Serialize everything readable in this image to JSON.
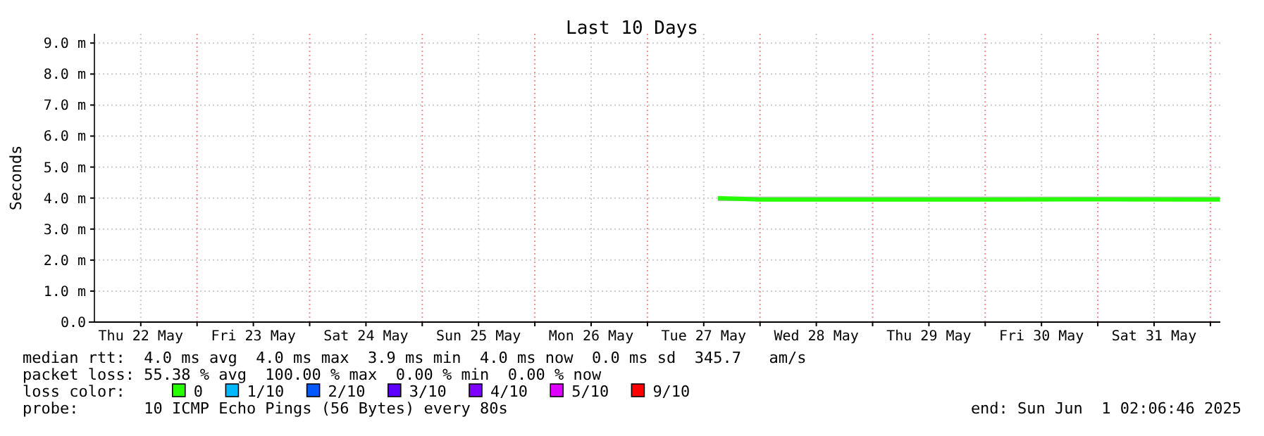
{
  "chart_data": {
    "type": "line",
    "title": "Last 10 Days",
    "ylabel": "Seconds",
    "xlim": [
      "2025-05-22T02:07",
      "2025-06-01T02:07"
    ],
    "xticks": [
      {
        "value": "2025-05-22T12:00",
        "label": "Thu 22 May"
      },
      {
        "value": "2025-05-23T00:00",
        "label": null
      },
      {
        "value": "2025-05-23T12:00",
        "label": "Fri 23 May"
      },
      {
        "value": "2025-05-24T00:00",
        "label": null
      },
      {
        "value": "2025-05-24T12:00",
        "label": "Sat 24 May"
      },
      {
        "value": "2025-05-25T00:00",
        "label": null
      },
      {
        "value": "2025-05-25T12:00",
        "label": "Sun 25 May"
      },
      {
        "value": "2025-05-26T00:00",
        "label": null
      },
      {
        "value": "2025-05-26T12:00",
        "label": "Mon 26 May"
      },
      {
        "value": "2025-05-27T00:00",
        "label": null
      },
      {
        "value": "2025-05-27T12:00",
        "label": "Tue 27 May"
      },
      {
        "value": "2025-05-28T00:00",
        "label": null
      },
      {
        "value": "2025-05-28T12:00",
        "label": "Wed 28 May"
      },
      {
        "value": "2025-05-29T00:00",
        "label": null
      },
      {
        "value": "2025-05-29T12:00",
        "label": "Thu 29 May"
      },
      {
        "value": "2025-05-30T00:00",
        "label": null
      },
      {
        "value": "2025-05-30T12:00",
        "label": "Fri 30 May"
      },
      {
        "value": "2025-05-31T00:00",
        "label": null
      },
      {
        "value": "2025-05-31T12:00",
        "label": "Sat 31 May"
      },
      {
        "value": "2025-06-01T00:00",
        "label": null
      }
    ],
    "ylim": [
      0,
      9.3
    ],
    "yticks": [
      {
        "value": 0,
        "label": "0.0"
      },
      {
        "value": 1,
        "label": "1.0 m"
      },
      {
        "value": 2,
        "label": "2.0 m"
      },
      {
        "value": 3,
        "label": "3.0 m"
      },
      {
        "value": 4,
        "label": "4.0 m"
      },
      {
        "value": 5,
        "label": "5.0 m"
      },
      {
        "value": 6,
        "label": "6.0 m"
      },
      {
        "value": 7,
        "label": "7.0 m"
      },
      {
        "value": 8,
        "label": "8.0 m"
      },
      {
        "value": 9,
        "label": "9.0 m"
      }
    ],
    "grid": true,
    "legend": "bottom left",
    "legend_title": "loss color:",
    "series": [
      {
        "name": "0",
        "color": "#26ff00",
        "x": [
          "2025-05-27T15:00",
          "2025-05-28T00:00",
          "2025-05-29T00:00",
          "2025-05-30T00:00",
          "2025-05-31T00:00",
          "2025-06-01T02:00"
        ],
        "values": [
          4.0,
          3.95,
          3.95,
          3.95,
          3.96,
          3.95
        ],
        "lower": [
          3.9,
          3.9,
          3.9,
          3.9,
          3.9,
          3.9
        ],
        "upper": [
          4.05,
          4.05,
          4.05,
          4.05,
          4.05,
          4.05
        ]
      },
      {
        "name": "1/10",
        "color": "#00b8ff"
      },
      {
        "name": "2/10",
        "color": "#0059ff"
      },
      {
        "name": "3/10",
        "color": "#5e00ff"
      },
      {
        "name": "4/10",
        "color": "#7e00ff"
      },
      {
        "name": "5/10",
        "color": "#dd00ff"
      },
      {
        "name": "9/10",
        "color": "#ff0000"
      }
    ],
    "annotations": [
      "median rtt:  4.0 ms avg  4.0 ms max  3.9 ms min  4.0 ms now  0.0 ms sd  345.7   am/s",
      "packet loss: 55.38 % avg  100.00 % max  0.00 % min  0.00 % now",
      "probe:       10 ICMP Echo Pings (56 Bytes) every 80s",
      "end: Sun Jun  1 02:06:46 2025"
    ]
  }
}
